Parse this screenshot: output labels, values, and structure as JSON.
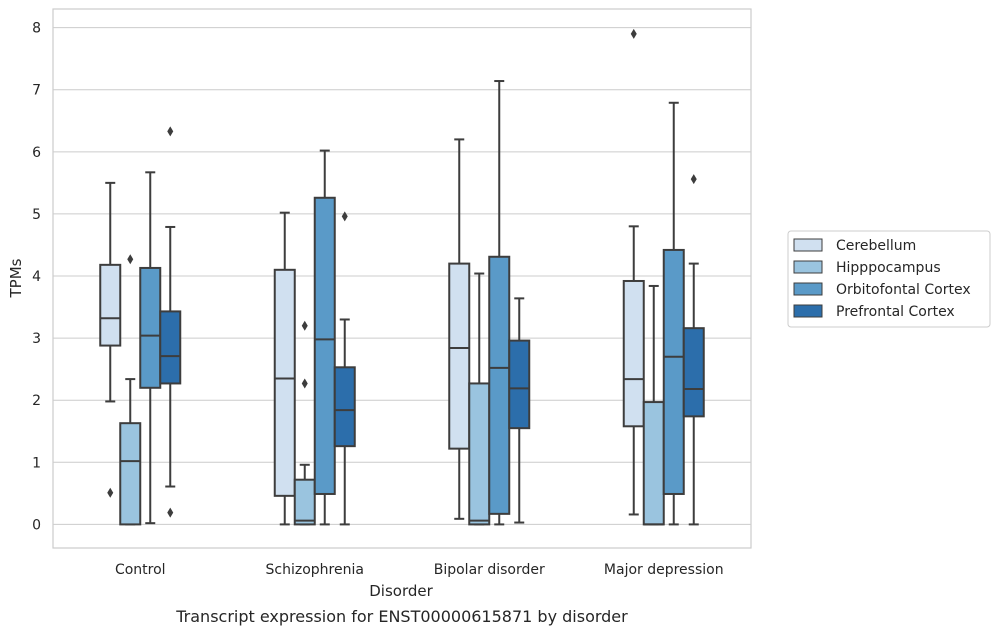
{
  "chart_data": {
    "type": "box",
    "caption": "Transcript expression for ENST00000615871 by disorder",
    "xlabel": "Disorder",
    "ylabel": "TPMs",
    "ylim": [
      -0.38,
      8.3
    ],
    "yticks": [
      0,
      1,
      2,
      3,
      4,
      5,
      6,
      7,
      8
    ],
    "grid": "horizontal",
    "legend_position": "right",
    "categories": [
      "Control",
      "Schizophrenia",
      "Bipolar disorder",
      "Major depression"
    ],
    "series": [
      {
        "name": "Cerebellum",
        "color": "#d0e0f0",
        "boxes": [
          {
            "whisker_low": 1.98,
            "q1": 2.88,
            "median": 3.32,
            "q3": 4.18,
            "whisker_high": 5.5,
            "outliers": [
              0.51
            ]
          },
          {
            "whisker_low": 0.0,
            "q1": 0.46,
            "median": 2.35,
            "q3": 4.1,
            "whisker_high": 5.02,
            "outliers": []
          },
          {
            "whisker_low": 0.09,
            "q1": 1.22,
            "median": 2.84,
            "q3": 4.2,
            "whisker_high": 6.2,
            "outliers": []
          },
          {
            "whisker_low": 0.16,
            "q1": 1.58,
            "median": 2.34,
            "q3": 3.92,
            "whisker_high": 4.8,
            "outliers": [
              7.9
            ]
          }
        ]
      },
      {
        "name": "Hipppocampus",
        "color": "#9ac4df",
        "boxes": [
          {
            "whisker_low": 0.0,
            "q1": 0.0,
            "median": 1.02,
            "q3": 1.63,
            "whisker_high": 2.34,
            "outliers": [
              4.27
            ]
          },
          {
            "whisker_low": 0.0,
            "q1": 0.0,
            "median": 0.06,
            "q3": 0.72,
            "whisker_high": 0.96,
            "outliers": [
              3.2,
              2.27
            ]
          },
          {
            "whisker_low": 0.0,
            "q1": 0.0,
            "median": 0.06,
            "q3": 2.27,
            "whisker_high": 4.04,
            "outliers": []
          },
          {
            "whisker_low": 0.0,
            "q1": 0.0,
            "median": 0.0,
            "q3": 1.97,
            "whisker_high": 3.84,
            "outliers": []
          }
        ]
      },
      {
        "name": "Orbitofontal Cortex",
        "color": "#5a9ac8",
        "boxes": [
          {
            "whisker_low": 0.02,
            "q1": 2.2,
            "median": 3.04,
            "q3": 4.13,
            "whisker_high": 5.67,
            "outliers": []
          },
          {
            "whisker_low": 0.0,
            "q1": 0.49,
            "median": 2.98,
            "q3": 5.26,
            "whisker_high": 6.02,
            "outliers": []
          },
          {
            "whisker_low": 0.0,
            "q1": 0.17,
            "median": 2.52,
            "q3": 4.31,
            "whisker_high": 7.14,
            "outliers": []
          },
          {
            "whisker_low": 0.0,
            "q1": 0.49,
            "median": 2.7,
            "q3": 4.42,
            "whisker_high": 6.79,
            "outliers": []
          }
        ]
      },
      {
        "name": "Prefrontal Cortex",
        "color": "#2c6eab",
        "boxes": [
          {
            "whisker_low": 0.61,
            "q1": 2.27,
            "median": 2.71,
            "q3": 3.43,
            "whisker_high": 4.79,
            "outliers": [
              6.33,
              0.19
            ]
          },
          {
            "whisker_low": 0.0,
            "q1": 1.26,
            "median": 1.84,
            "q3": 2.53,
            "whisker_high": 3.3,
            "outliers": [
              4.96
            ]
          },
          {
            "whisker_low": 0.03,
            "q1": 1.55,
            "median": 2.19,
            "q3": 2.96,
            "whisker_high": 3.64,
            "outliers": []
          },
          {
            "whisker_low": 0.0,
            "q1": 1.74,
            "median": 2.18,
            "q3": 3.16,
            "whisker_high": 4.2,
            "outliers": [
              5.56
            ]
          }
        ]
      }
    ]
  }
}
